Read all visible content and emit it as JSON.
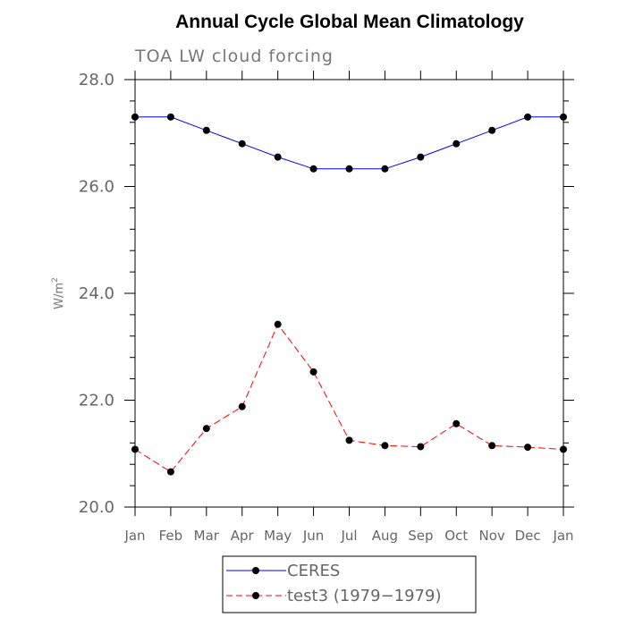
{
  "chart_data": {
    "type": "line",
    "title": "Annual Cycle Global Mean Climatology",
    "subtitle": "TOA LW cloud forcing",
    "ylabel": "W/m",
    "ylabel_superscript": "2",
    "xlabel": "",
    "ylim": [
      20.0,
      28.0
    ],
    "yticks": [
      "20.0",
      "22.0",
      "24.0",
      "26.0",
      "28.0"
    ],
    "yticks_values": [
      20.0,
      22.0,
      24.0,
      26.0,
      28.0
    ],
    "categories": [
      "Jan",
      "Feb",
      "Mar",
      "Apr",
      "May",
      "Jun",
      "Jul",
      "Aug",
      "Sep",
      "Oct",
      "Nov",
      "Dec",
      "Jan"
    ],
    "series": [
      {
        "name": "CERES",
        "color": "#0000ff",
        "style": "solid",
        "values": [
          27.3,
          27.3,
          27.05,
          26.8,
          26.55,
          26.33,
          26.33,
          26.33,
          26.55,
          26.8,
          27.05,
          27.3,
          27.3
        ]
      },
      {
        "name": "test3 (1979−1979)",
        "color": "#ff0000",
        "style": "dashed",
        "values": [
          21.08,
          20.66,
          21.47,
          21.88,
          23.42,
          22.53,
          21.25,
          21.15,
          21.13,
          21.56,
          21.15,
          21.12,
          21.08
        ]
      }
    ],
    "legend_position": "bottom-center",
    "marker_color": "#000000"
  }
}
